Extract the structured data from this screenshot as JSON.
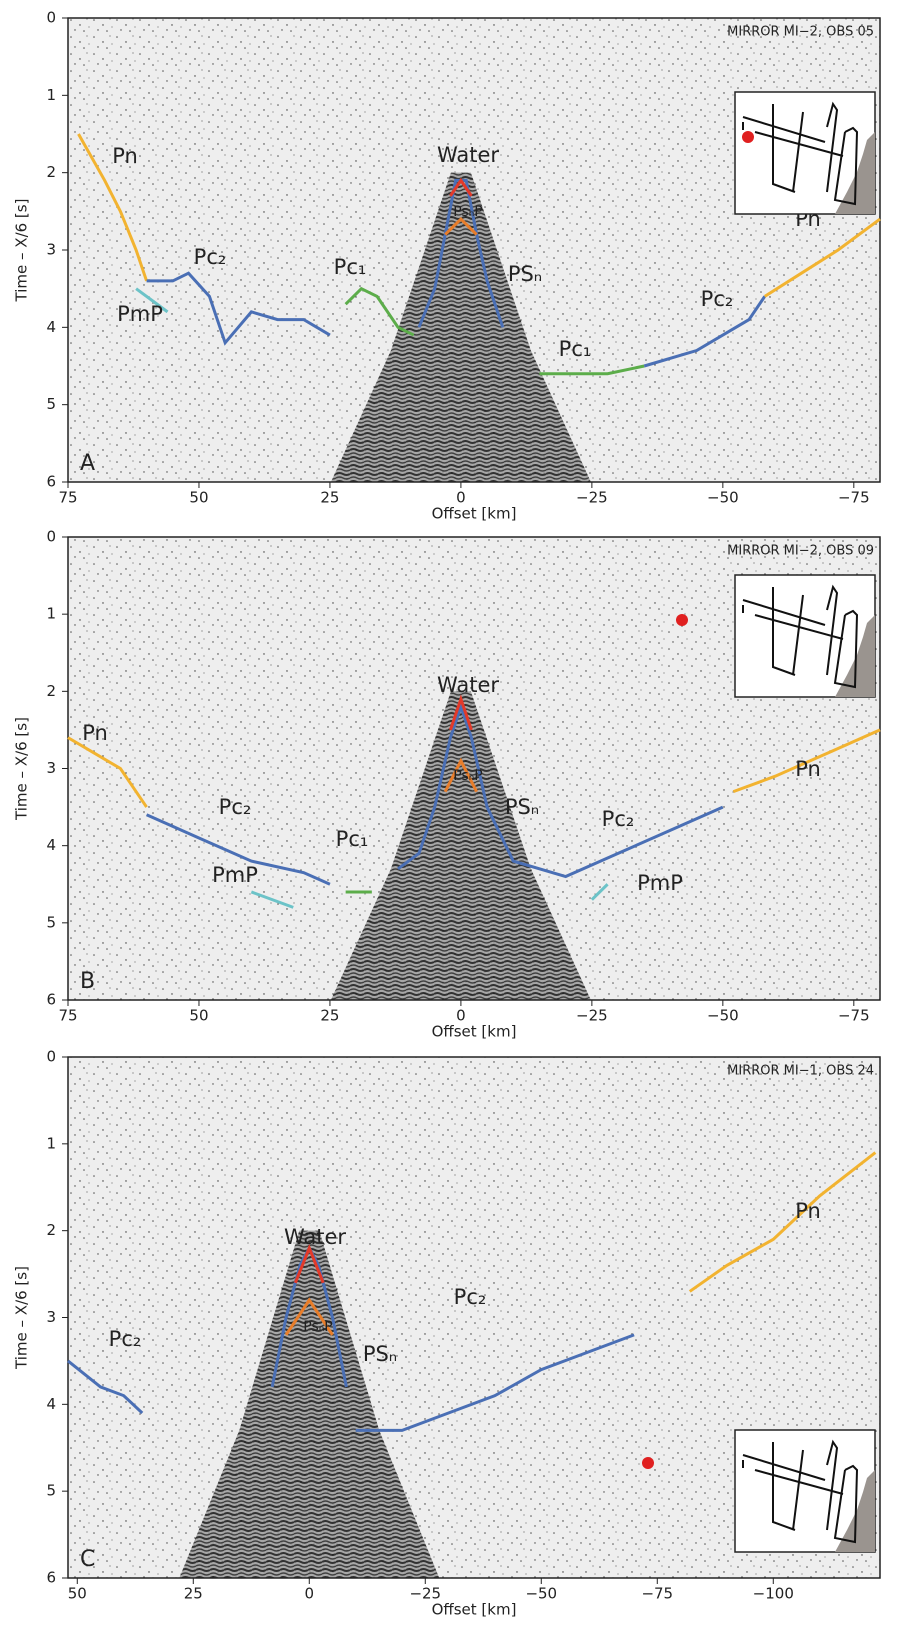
{
  "chart_data": [
    {
      "type": "line",
      "panel": "A",
      "note": "MIRROR MI−2, OBS 05",
      "xlabel": "Offset [km]",
      "ylabel": "Time – X/6 [s]",
      "xlim": [
        75,
        -80
      ],
      "ylim": [
        0,
        6
      ],
      "xticks": [
        75,
        50,
        25,
        0,
        {
          "value": -25,
          "label": "−25"
        },
        {
          "value": -50,
          "label": "−50"
        },
        {
          "value": -75,
          "label": "−75"
        }
      ],
      "yticks": [
        0,
        1,
        2,
        3,
        4,
        5,
        6
      ],
      "annotations": [
        "Pn",
        "Pc₂",
        "PmP",
        "Pc₁",
        "Water",
        "PsₙP",
        "PSₙ",
        "Pc₁",
        "Pc₂",
        "Pn"
      ],
      "series": [
        {
          "color": "#f2b330",
          "x": [
            73,
            68,
            65,
            62,
            60
          ],
          "values": [
            1.5,
            2.1,
            2.5,
            3.0,
            3.4
          ]
        },
        {
          "color": "#4a6fb5",
          "x": [
            60,
            55,
            52,
            48,
            45,
            40,
            35,
            30,
            25
          ],
          "values": [
            3.4,
            3.4,
            3.3,
            3.6,
            4.2,
            3.8,
            3.9,
            3.9,
            4.1
          ]
        },
        {
          "color": "#6cc3c8",
          "x": [
            62,
            58,
            56
          ],
          "values": [
            3.5,
            3.7,
            3.8
          ]
        },
        {
          "color": "#5cad4a",
          "x": [
            22,
            19,
            16,
            12,
            9
          ],
          "values": [
            3.7,
            3.5,
            3.6,
            4.0,
            4.1
          ]
        },
        {
          "color": "#4a6fb5",
          "x": [
            8,
            5,
            3,
            1,
            -1,
            -3,
            -5,
            -8
          ],
          "values": [
            4.0,
            3.5,
            2.8,
            2.1,
            2.1,
            2.8,
            3.4,
            4.0
          ]
        },
        {
          "color": "#e87d2a",
          "x": [
            3,
            0,
            -3
          ],
          "values": [
            2.8,
            2.6,
            2.8
          ]
        },
        {
          "color": "#e23a2a",
          "x": [
            2,
            0,
            -2
          ],
          "values": [
            2.3,
            2.1,
            2.3
          ]
        },
        {
          "color": "#5cad4a",
          "x": [
            -15,
            -20,
            -28,
            -35
          ],
          "values": [
            4.6,
            4.6,
            4.6,
            4.5
          ]
        },
        {
          "color": "#4a6fb5",
          "x": [
            -35,
            -45,
            -55,
            -58
          ],
          "values": [
            4.5,
            4.3,
            3.9,
            3.6
          ]
        },
        {
          "color": "#f2b330",
          "x": [
            -58,
            -65,
            -72,
            -80
          ],
          "values": [
            3.6,
            3.3,
            3.0,
            2.6
          ]
        }
      ]
    },
    {
      "type": "line",
      "panel": "B",
      "note": "MIRROR MI−2, OBS 09",
      "xlabel": "Offset [km]",
      "ylabel": "Time – X/6 [s]",
      "xlim": [
        75,
        -80
      ],
      "ylim": [
        0,
        6
      ],
      "xticks": [
        75,
        50,
        25,
        0,
        {
          "value": -25,
          "label": "−25"
        },
        {
          "value": -50,
          "label": "−50"
        },
        {
          "value": -75,
          "label": "−75"
        }
      ],
      "yticks": [
        0,
        1,
        2,
        3,
        4,
        5,
        6
      ],
      "annotations": [
        "Pn",
        "Pc₂",
        "PmP",
        "Pc₁",
        "Water",
        "PsₙP",
        "PSₙ",
        "Pc₂",
        "PmP",
        "Pn"
      ],
      "series": [
        {
          "color": "#f2b330",
          "x": [
            75,
            70,
            65,
            60
          ],
          "values": [
            2.6,
            2.8,
            3.0,
            3.5
          ]
        },
        {
          "color": "#4a6fb5",
          "x": [
            60,
            50,
            40,
            30,
            25
          ],
          "values": [
            3.6,
            3.9,
            4.2,
            4.35,
            4.5
          ]
        },
        {
          "color": "#6cc3c8",
          "x": [
            40,
            32
          ],
          "values": [
            4.6,
            4.8
          ]
        },
        {
          "color": "#5cad4a",
          "x": [
            22,
            17
          ],
          "values": [
            4.6,
            4.6
          ]
        },
        {
          "color": "#4a6fb5",
          "x": [
            12,
            8,
            5,
            2,
            0,
            -2,
            -5,
            -10,
            -20,
            -30,
            -40,
            -50
          ],
          "values": [
            4.3,
            4.1,
            3.5,
            2.6,
            2.2,
            2.6,
            3.5,
            4.2,
            4.4,
            4.1,
            3.8,
            3.5
          ]
        },
        {
          "color": "#e87d2a",
          "x": [
            3,
            0,
            -3
          ],
          "values": [
            3.3,
            2.9,
            3.3
          ]
        },
        {
          "color": "#e23a2a",
          "x": [
            2,
            0,
            -2
          ],
          "values": [
            2.5,
            2.1,
            2.5
          ]
        },
        {
          "color": "#6cc3c8",
          "x": [
            -25,
            -28
          ],
          "values": [
            4.7,
            4.5
          ]
        },
        {
          "color": "#f2b330",
          "x": [
            -52,
            -60,
            -70,
            -80
          ],
          "values": [
            3.3,
            3.1,
            2.8,
            2.5
          ]
        }
      ]
    },
    {
      "type": "line",
      "panel": "C",
      "note": "MIRROR MI−1, OBS 24",
      "xlabel": "Offset [km]",
      "ylabel": "Time – X/6 [s]",
      "xlim": [
        52,
        -123
      ],
      "ylim": [
        0,
        6
      ],
      "xticks": [
        50,
        25,
        0,
        {
          "value": -25,
          "label": "−25"
        },
        {
          "value": -50,
          "label": "−50"
        },
        {
          "value": -75,
          "label": "−75"
        },
        {
          "value": -100,
          "label": "−100"
        }
      ],
      "yticks": [
        0,
        1,
        2,
        3,
        4,
        5,
        6
      ],
      "annotations": [
        "Pc₂",
        "Water",
        "PsₙP",
        "PSₙ",
        "Pc₂",
        "Pn"
      ],
      "series": [
        {
          "color": "#4a6fb5",
          "x": [
            52,
            45,
            40,
            36
          ],
          "values": [
            3.5,
            3.8,
            3.9,
            4.1
          ]
        },
        {
          "color": "#4a6fb5",
          "x": [
            8,
            5,
            2,
            0,
            -2,
            -5,
            -8
          ],
          "values": [
            3.8,
            3.0,
            2.4,
            2.2,
            2.4,
            3.0,
            3.8
          ]
        },
        {
          "color": "#e87d2a",
          "x": [
            5,
            0,
            -5
          ],
          "values": [
            3.2,
            2.8,
            3.2
          ]
        },
        {
          "color": "#e23a2a",
          "x": [
            3,
            0,
            -3
          ],
          "values": [
            2.6,
            2.2,
            2.6
          ]
        },
        {
          "color": "#4a6fb5",
          "x": [
            -10,
            -20,
            -30,
            -40,
            -50,
            -60,
            -70
          ],
          "values": [
            4.3,
            4.3,
            4.1,
            3.9,
            3.6,
            3.4,
            3.2
          ]
        },
        {
          "color": "#f2b330",
          "x": [
            -82,
            -90,
            -100,
            -110,
            -122
          ],
          "values": [
            2.7,
            2.4,
            2.1,
            1.6,
            1.1
          ]
        }
      ]
    }
  ]
}
